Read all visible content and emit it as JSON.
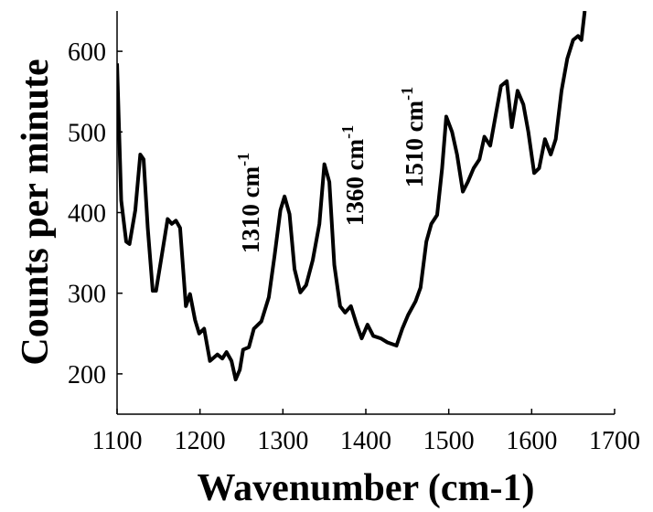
{
  "chart_data": {
    "type": "line",
    "x_label": "Wavenumber (cm-1)",
    "y_label": "Counts per minute",
    "xlim": [
      1100,
      1700
    ],
    "xticks": [
      1100,
      1200,
      1300,
      1400,
      1500,
      1600,
      1700
    ],
    "ylim": [
      150,
      650
    ],
    "yticks": [
      200,
      300,
      400,
      500,
      600
    ],
    "annotations": [
      {
        "text": "1310 cm",
        "sup": "-1"
      },
      {
        "text": "1360 cm",
        "sup": "-1"
      },
      {
        "text": "1510 cm",
        "sup": "-1"
      }
    ],
    "series": [
      {
        "color": "#000000",
        "x": [
          1100,
          1105,
          1111,
          1115,
          1122,
          1128,
          1132,
          1137,
          1143,
          1147,
          1153,
          1161,
          1166,
          1171,
          1176,
          1183,
          1188,
          1194,
          1199,
          1205,
          1212,
          1221,
          1227,
          1232,
          1238,
          1243,
          1248,
          1252,
          1259,
          1265,
          1274,
          1283,
          1290,
          1297,
          1302,
          1308,
          1314,
          1321,
          1328,
          1336,
          1344,
          1350,
          1356,
          1362,
          1369,
          1375,
          1382,
          1389,
          1395,
          1402,
          1409,
          1418,
          1426,
          1437,
          1444,
          1451,
          1460,
          1466,
          1473,
          1479,
          1486,
          1492,
          1497,
          1504,
          1510,
          1517,
          1523,
          1530,
          1537,
          1543,
          1550,
          1557,
          1563,
          1570,
          1576,
          1583,
          1590,
          1596,
          1603,
          1609,
          1616,
          1623,
          1629,
          1636,
          1643,
          1650,
          1656,
          1660,
          1664
        ],
        "values": [
          585,
          415,
          364,
          361,
          403,
          472,
          466,
          381,
          303,
          303,
          341,
          392,
          386,
          390,
          381,
          284,
          299,
          267,
          250,
          256,
          216,
          224,
          219,
          227,
          216,
          193,
          205,
          230,
          233,
          256,
          265,
          295,
          347,
          403,
          420,
          398,
          330,
          301,
          310,
          341,
          386,
          460,
          438,
          335,
          284,
          276,
          284,
          261,
          244,
          261,
          247,
          244,
          239,
          235,
          256,
          273,
          290,
          307,
          364,
          386,
          397,
          455,
          519,
          500,
          472,
          426,
          438,
          455,
          466,
          494,
          483,
          523,
          557,
          563,
          506,
          551,
          534,
          500,
          449,
          455,
          491,
          472,
          491,
          551,
          591,
          614,
          619,
          614,
          650
        ]
      }
    ]
  }
}
